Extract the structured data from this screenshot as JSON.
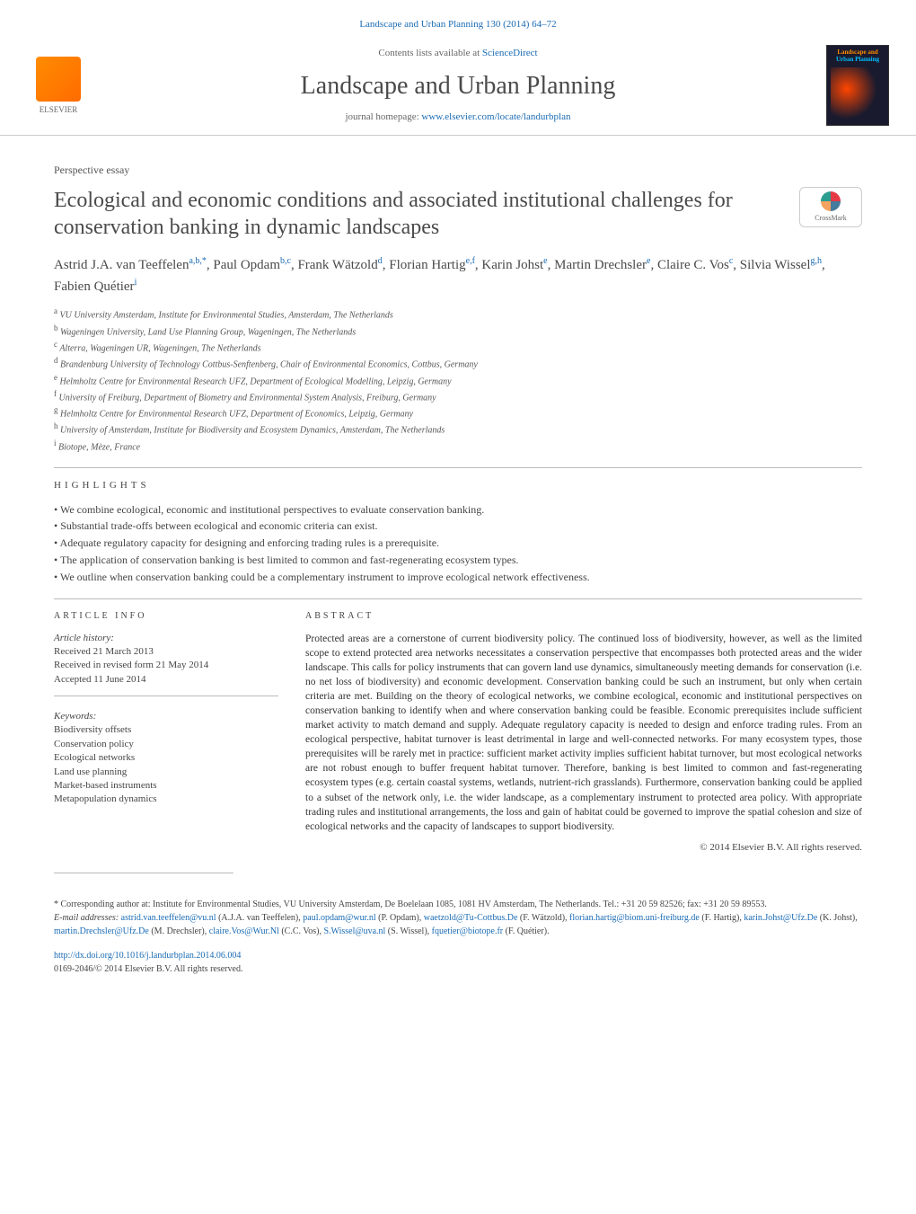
{
  "header": {
    "running_head_prefix": "Landscape and Urban Planning 130 (2014) 64–72",
    "contents_prefix": "Contents lists available at ",
    "contents_link": "ScienceDirect",
    "journal_name": "Landscape and Urban Planning",
    "homepage_prefix": "journal homepage: ",
    "homepage_link": "www.elsevier.com/locate/landurbplan",
    "elsevier_label": "ELSEVIER",
    "cover_top": "Landscape and",
    "cover_bottom": "Urban Planning",
    "crossmark_label": "CrossMark"
  },
  "article": {
    "type": "Perspective essay",
    "title": "Ecological and economic conditions and associated institutional challenges for conservation banking in dynamic landscapes",
    "authors_html": "Astrid J.A. van Teeffelen<sup>a,b,*</sup>, Paul Opdam<sup>b,c</sup>, Frank Wätzold<sup>d</sup>, Florian Hartig<sup>e,f</sup>, Karin Johst<sup>e</sup>, Martin Drechsler<sup>e</sup>, Claire C. Vos<sup>c</sup>, Silvia Wissel<sup>g,h</sup>, Fabien Quétier<sup>i</sup>",
    "affiliations": [
      "a VU University Amsterdam, Institute for Environmental Studies, Amsterdam, The Netherlands",
      "b Wageningen University, Land Use Planning Group, Wageningen, The Netherlands",
      "c Alterra, Wageningen UR, Wageningen, The Netherlands",
      "d Brandenburg University of Technology Cottbus-Senftenberg, Chair of Environmental Economics, Cottbus, Germany",
      "e Helmholtz Centre for Environmental Research UFZ, Department of Ecological Modelling, Leipzig, Germany",
      "f University of Freiburg, Department of Biometry and Environmental System Analysis, Freiburg, Germany",
      "g Helmholtz Centre for Environmental Research UFZ, Department of Economics, Leipzig, Germany",
      "h University of Amsterdam, Institute for Biodiversity and Ecosystem Dynamics, Amsterdam, The Netherlands",
      "i Biotope, Mèze, France"
    ]
  },
  "highlights": {
    "label": "highlights",
    "items": [
      "We combine ecological, economic and institutional perspectives to evaluate conservation banking.",
      "Substantial trade-offs between ecological and economic criteria can exist.",
      "Adequate regulatory capacity for designing and enforcing trading rules is a prerequisite.",
      "The application of conservation banking is best limited to common and fast-regenerating ecosystem types.",
      "We outline when conservation banking could be a complementary instrument to improve ecological network effectiveness."
    ]
  },
  "info": {
    "heading": "article info",
    "history_label": "Article history:",
    "history": [
      "Received 21 March 2013",
      "Received in revised form 21 May 2014",
      "Accepted 11 June 2014"
    ],
    "keywords_label": "Keywords:",
    "keywords": [
      "Biodiversity offsets",
      "Conservation policy",
      "Ecological networks",
      "Land use planning",
      "Market-based instruments",
      "Metapopulation dynamics"
    ]
  },
  "abstract": {
    "heading": "abstract",
    "text": "Protected areas are a cornerstone of current biodiversity policy. The continued loss of biodiversity, however, as well as the limited scope to extend protected area networks necessitates a conservation perspective that encompasses both protected areas and the wider landscape. This calls for policy instruments that can govern land use dynamics, simultaneously meeting demands for conservation (i.e. no net loss of biodiversity) and economic development. Conservation banking could be such an instrument, but only when certain criteria are met. Building on the theory of ecological networks, we combine ecological, economic and institutional perspectives on conservation banking to identify when and where conservation banking could be feasible. Economic prerequisites include sufficient market activity to match demand and supply. Adequate regulatory capacity is needed to design and enforce trading rules. From an ecological perspective, habitat turnover is least detrimental in large and well-connected networks. For many ecosystem types, those prerequisites will be rarely met in practice: sufficient market activity implies sufficient habitat turnover, but most ecological networks are not robust enough to buffer frequent habitat turnover. Therefore, banking is best limited to common and fast-regenerating ecosystem types (e.g. certain coastal systems, wetlands, nutrient-rich grasslands). Furthermore, conservation banking could be applied to a subset of the network only, i.e. the wider landscape, as a complementary instrument to protected area policy. With appropriate trading rules and institutional arrangements, the loss and gain of habitat could be governed to improve the spatial cohesion and size of ecological networks and the capacity of landscapes to support biodiversity.",
    "copyright": "© 2014 Elsevier B.V. All rights reserved."
  },
  "footer": {
    "corresponding": "* Corresponding author at: Institute for Environmental Studies, VU University Amsterdam, De Boelelaan 1085, 1081 HV Amsterdam, The Netherlands. Tel.: +31 20 59 82526; fax: +31 20 59 89553.",
    "email_label": "E-mail addresses: ",
    "emails": [
      {
        "addr": "astrid.van.teeffelen@vu.nl",
        "who": "(A.J.A. van Teeffelen)"
      },
      {
        "addr": "paul.opdam@wur.nl",
        "who": "(P. Opdam)"
      },
      {
        "addr": "waetzold@Tu-Cottbus.De",
        "who": "(F. Wätzold)"
      },
      {
        "addr": "florian.hartig@biom.uni-freiburg.de",
        "who": "(F. Hartig)"
      },
      {
        "addr": "karin.Johst@Ufz.De",
        "who": "(K. Johst)"
      },
      {
        "addr": "martin.Drechsler@Ufz.De",
        "who": "(M. Drechsler)"
      },
      {
        "addr": "claire.Vos@Wur.Nl",
        "who": "(C.C. Vos)"
      },
      {
        "addr": "S.Wissel@uva.nl",
        "who": "(S. Wissel)"
      },
      {
        "addr": "fquetier@biotope.fr",
        "who": "(F. Quétier)"
      }
    ],
    "doi": "http://dx.doi.org/10.1016/j.landurbplan.2014.06.004",
    "issn_line": "0169-2046/© 2014 Elsevier B.V. All rights reserved."
  },
  "colors": {
    "link": "#1a6bb3",
    "text": "#333333",
    "muted": "#666666",
    "rule": "#bbbbbb",
    "elsevier_orange": "#ff8c00"
  }
}
